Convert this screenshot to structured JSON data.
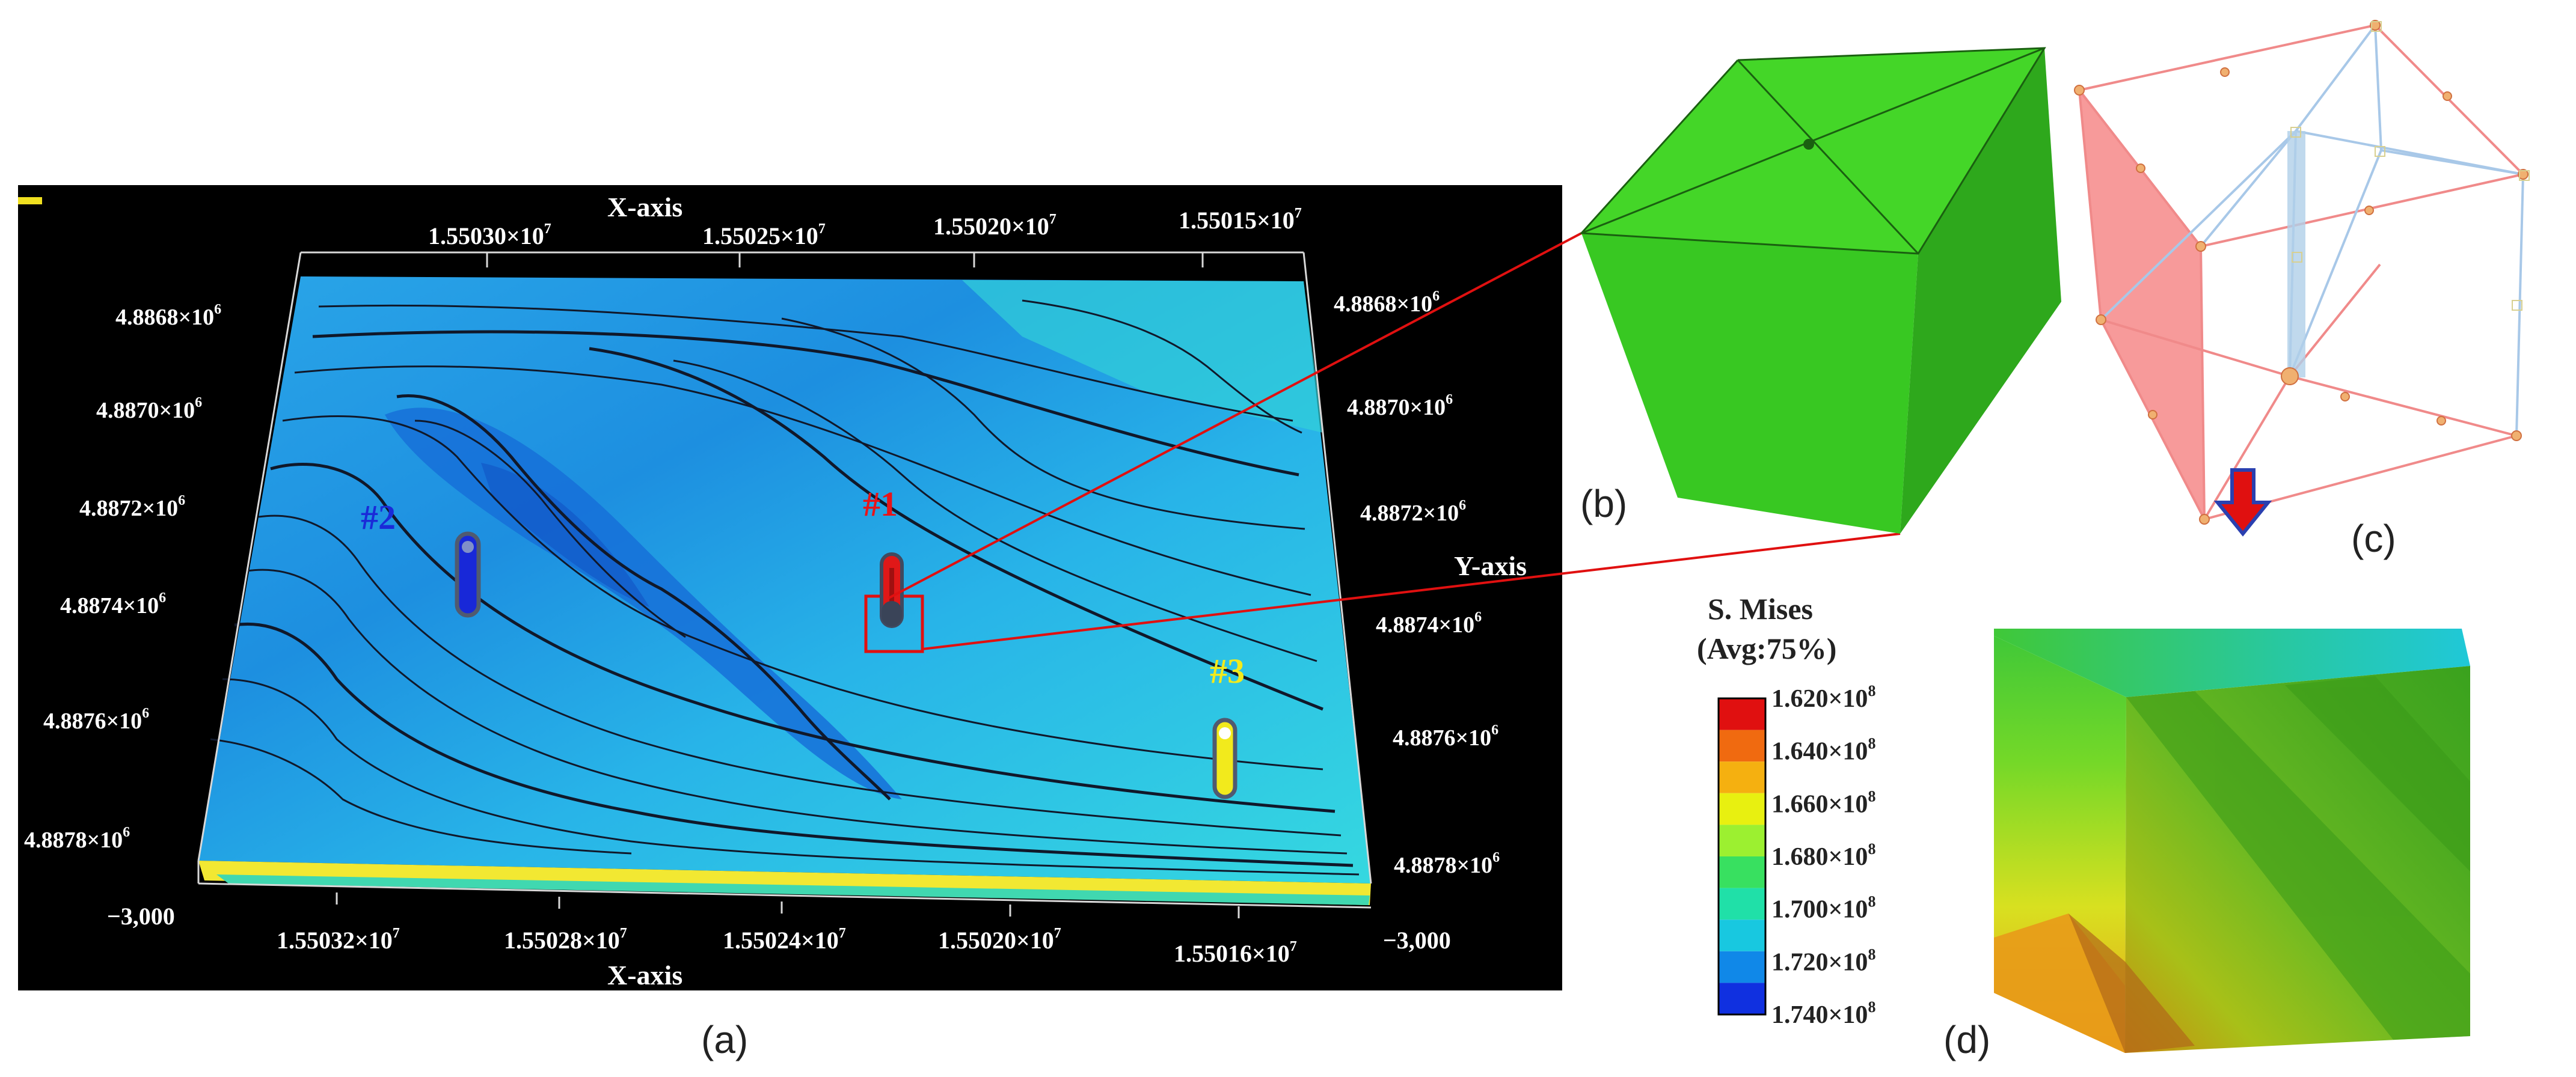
{
  "panel_a": {
    "caption": "(a)",
    "x_axis_title_top": "X-axis",
    "x_axis_title_bottom": "X-axis",
    "y_axis_title": "Y-axis",
    "top_x_ticks": [
      "1.55030×10",
      "1.55025×10",
      "1.55020×10",
      "1.55015×10"
    ],
    "bottom_x_ticks": [
      "1.55032×10",
      "1.55028×10",
      "1.55024×10",
      "1.55020×10",
      "1.55016×10"
    ],
    "x_exp": "7",
    "left_y_ticks": [
      "4.8868×10",
      "4.8870×10",
      "4.8872×10",
      "4.8874×10",
      "4.8876×10",
      "4.8878×10"
    ],
    "right_y_ticks": [
      "4.8868×10",
      "4.8870×10",
      "4.8872×10",
      "4.8874×10",
      "4.8876×10",
      "4.8878×10"
    ],
    "y_exp": "6",
    "z_left": "−3,000",
    "z_right": "−3,000",
    "markers": [
      {
        "label": "#1",
        "color": "#e8141a"
      },
      {
        "label": "#2",
        "color": "#1a2ad8"
      },
      {
        "label": "#3",
        "color": "#f2ea1c"
      }
    ]
  },
  "panel_b": {
    "caption": "(b)",
    "color": "#33cc22"
  },
  "panel_c": {
    "caption": "(c)"
  },
  "panel_d": {
    "caption": "(d)",
    "legend_title_line1": "S. Mises",
    "legend_title_line2": "(Avg:75%)",
    "legend_values": [
      "1.620×10",
      "1.640×10",
      "1.660×10",
      "1.680×10",
      "1.700×10",
      "1.720×10",
      "1.740×10"
    ],
    "legend_exp": "8",
    "legend_colors": [
      "#e01010",
      "#f06a10",
      "#f5b010",
      "#e8f010",
      "#9cf030",
      "#38e060",
      "#20e0a8",
      "#18c8e0",
      "#1088e8",
      "#1030e0"
    ]
  }
}
